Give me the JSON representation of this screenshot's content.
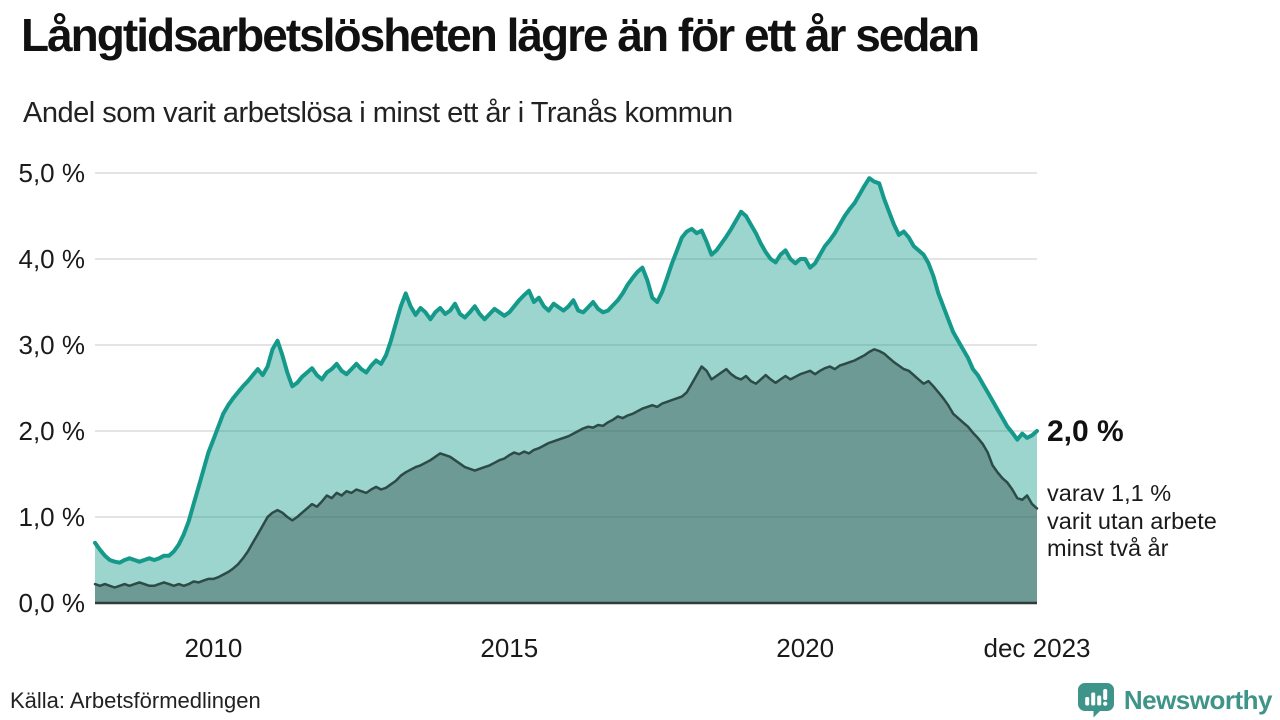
{
  "header": {
    "title": "Långtidsarbetslösheten lägre än för ett år sedan",
    "subtitle": "Andel som varit arbetslösa i minst ett år i Tranås kommun"
  },
  "annotation": {
    "value": "2,0 %",
    "detail_lines": [
      "varav 1,1 %",
      "varit utan arbete",
      "minst två år"
    ]
  },
  "footer": {
    "source": "Källa: Arbetsförmedlingen",
    "brand": "Newsworthy"
  },
  "colors": {
    "series1_line": "#14998a",
    "series2_line": "#2d4b46",
    "gridline": "#e4e4e4",
    "axis_line": "#333b3a",
    "brand_teal": "#3e9488",
    "text": "#1a1a1a"
  },
  "chart_data": {
    "type": "area",
    "title": "Långtidsarbetslösheten lägre än för ett år sedan",
    "subtitle": "Andel som varit arbetslösa i minst ett år i Tranås kommun",
    "x_start": "2008-01",
    "x_end": "2023-12",
    "x_frequency": "monthly",
    "ylim": [
      0,
      5
    ],
    "grid": "horizontal",
    "legend_position": "none",
    "yticks": [
      {
        "value": 0,
        "label": "0,0 %"
      },
      {
        "value": 1,
        "label": "1,0 %"
      },
      {
        "value": 2,
        "label": "2,0 %"
      },
      {
        "value": 3,
        "label": "3,0 %"
      },
      {
        "value": 4,
        "label": "4,0 %"
      },
      {
        "value": 5,
        "label": "5,0 %"
      }
    ],
    "xticks": [
      {
        "month_index": 24,
        "label": "2010"
      },
      {
        "month_index": 84,
        "label": "2015"
      },
      {
        "month_index": 144,
        "label": "2020"
      },
      {
        "month_index": 191,
        "label": "dec 2023"
      }
    ],
    "series": [
      {
        "name": "Andel arbetslösa minst ett år",
        "color": "#14998a",
        "fill_opacity": 0.42,
        "line_width": 4,
        "end_value": 2.0,
        "values": [
          0.7,
          0.62,
          0.55,
          0.5,
          0.48,
          0.47,
          0.5,
          0.52,
          0.5,
          0.48,
          0.5,
          0.52,
          0.5,
          0.52,
          0.55,
          0.55,
          0.6,
          0.68,
          0.8,
          0.95,
          1.15,
          1.35,
          1.55,
          1.75,
          1.9,
          2.05,
          2.2,
          2.3,
          2.38,
          2.45,
          2.52,
          2.58,
          2.65,
          2.72,
          2.65,
          2.75,
          2.95,
          3.05,
          2.88,
          2.68,
          2.52,
          2.56,
          2.63,
          2.68,
          2.73,
          2.65,
          2.6,
          2.68,
          2.72,
          2.78,
          2.7,
          2.66,
          2.72,
          2.78,
          2.72,
          2.68,
          2.76,
          2.82,
          2.78,
          2.88,
          3.05,
          3.25,
          3.45,
          3.6,
          3.45,
          3.35,
          3.43,
          3.38,
          3.3,
          3.38,
          3.43,
          3.36,
          3.4,
          3.48,
          3.36,
          3.32,
          3.38,
          3.45,
          3.36,
          3.3,
          3.36,
          3.42,
          3.38,
          3.34,
          3.38,
          3.45,
          3.52,
          3.58,
          3.63,
          3.5,
          3.55,
          3.45,
          3.4,
          3.48,
          3.44,
          3.4,
          3.45,
          3.52,
          3.4,
          3.38,
          3.44,
          3.5,
          3.42,
          3.38,
          3.4,
          3.46,
          3.52,
          3.6,
          3.7,
          3.78,
          3.85,
          3.9,
          3.75,
          3.55,
          3.5,
          3.62,
          3.78,
          3.95,
          4.1,
          4.25,
          4.32,
          4.35,
          4.3,
          4.33,
          4.2,
          4.05,
          4.1,
          4.18,
          4.26,
          4.35,
          4.45,
          4.55,
          4.5,
          4.4,
          4.3,
          4.18,
          4.08,
          4.0,
          3.96,
          4.05,
          4.1,
          4.0,
          3.95,
          4.0,
          4.0,
          3.9,
          3.95,
          4.05,
          4.15,
          4.22,
          4.3,
          4.4,
          4.5,
          4.58,
          4.65,
          4.75,
          4.85,
          4.94,
          4.9,
          4.88,
          4.7,
          4.55,
          4.4,
          4.28,
          4.32,
          4.25,
          4.15,
          4.1,
          4.05,
          3.95,
          3.8,
          3.6,
          3.45,
          3.3,
          3.15,
          3.05,
          2.95,
          2.85,
          2.72,
          2.65,
          2.55,
          2.45,
          2.35,
          2.25,
          2.15,
          2.05,
          1.98,
          1.9,
          1.97,
          1.92,
          1.95,
          2.0
        ]
      },
      {
        "name": "Andel arbetslösa minst två år",
        "color": "#2d4b46",
        "fill_opacity": 0.42,
        "line_width": 2.5,
        "end_value": 1.1,
        "values": [
          0.22,
          0.2,
          0.22,
          0.2,
          0.18,
          0.2,
          0.22,
          0.2,
          0.22,
          0.24,
          0.22,
          0.2,
          0.2,
          0.22,
          0.24,
          0.22,
          0.2,
          0.22,
          0.2,
          0.22,
          0.25,
          0.24,
          0.26,
          0.28,
          0.28,
          0.3,
          0.33,
          0.36,
          0.4,
          0.45,
          0.52,
          0.6,
          0.7,
          0.8,
          0.9,
          1.0,
          1.05,
          1.08,
          1.05,
          1.0,
          0.96,
          1.0,
          1.05,
          1.1,
          1.15,
          1.12,
          1.18,
          1.25,
          1.22,
          1.28,
          1.25,
          1.3,
          1.28,
          1.32,
          1.3,
          1.28,
          1.32,
          1.35,
          1.32,
          1.34,
          1.38,
          1.42,
          1.48,
          1.52,
          1.55,
          1.58,
          1.6,
          1.63,
          1.66,
          1.7,
          1.74,
          1.72,
          1.7,
          1.66,
          1.62,
          1.58,
          1.56,
          1.54,
          1.56,
          1.58,
          1.6,
          1.63,
          1.66,
          1.68,
          1.72,
          1.75,
          1.73,
          1.76,
          1.74,
          1.78,
          1.8,
          1.83,
          1.86,
          1.88,
          1.9,
          1.92,
          1.94,
          1.97,
          2.0,
          2.03,
          2.05,
          2.04,
          2.07,
          2.06,
          2.1,
          2.13,
          2.17,
          2.15,
          2.18,
          2.2,
          2.23,
          2.26,
          2.28,
          2.3,
          2.28,
          2.32,
          2.34,
          2.36,
          2.38,
          2.4,
          2.45,
          2.55,
          2.65,
          2.75,
          2.7,
          2.6,
          2.64,
          2.68,
          2.72,
          2.66,
          2.62,
          2.6,
          2.64,
          2.58,
          2.55,
          2.6,
          2.65,
          2.6,
          2.56,
          2.6,
          2.64,
          2.6,
          2.63,
          2.66,
          2.68,
          2.7,
          2.66,
          2.7,
          2.73,
          2.75,
          2.72,
          2.76,
          2.78,
          2.8,
          2.82,
          2.85,
          2.88,
          2.92,
          2.95,
          2.93,
          2.9,
          2.85,
          2.8,
          2.76,
          2.72,
          2.7,
          2.65,
          2.6,
          2.55,
          2.58,
          2.52,
          2.45,
          2.38,
          2.3,
          2.2,
          2.15,
          2.1,
          2.05,
          1.98,
          1.92,
          1.85,
          1.75,
          1.6,
          1.52,
          1.45,
          1.4,
          1.32,
          1.22,
          1.2,
          1.25,
          1.15,
          1.1
        ]
      }
    ]
  }
}
